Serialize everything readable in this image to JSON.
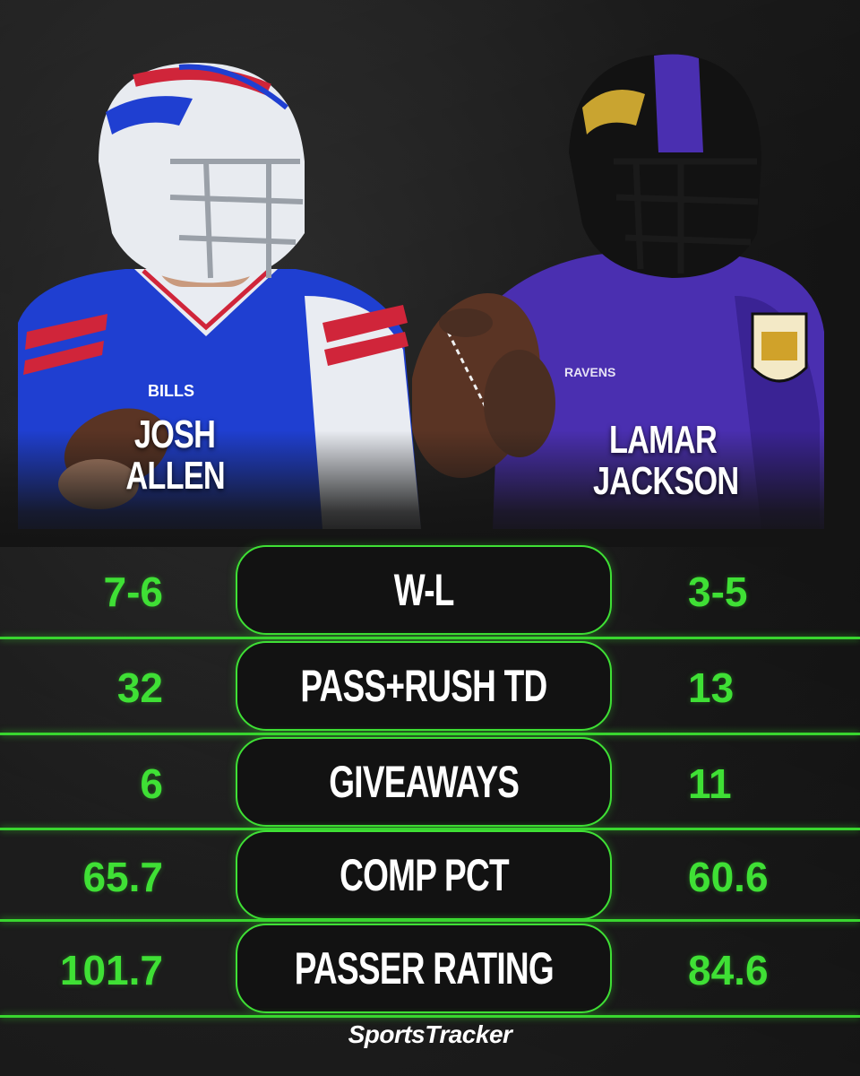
{
  "players": {
    "left": {
      "name_line1": "JOSH",
      "name_line2": "ALLEN",
      "jersey_text": "BILLS"
    },
    "right": {
      "name_line1": "LAMAR",
      "name_line2": "JACKSON",
      "jersey_text": "RAVENS"
    }
  },
  "stats": [
    {
      "label": "W-L",
      "left": "7-6",
      "right": "3-5"
    },
    {
      "label": "PASS+RUSH TD",
      "left": "32",
      "right": "13"
    },
    {
      "label": "GIVEAWAYS",
      "left": "6",
      "right": "11"
    },
    {
      "label": "COMP PCT",
      "left": "65.7",
      "right": "60.6"
    },
    {
      "label": "PASSER RATING",
      "left": "101.7",
      "right": "84.6"
    }
  ],
  "brand": {
    "name": "SportsTracker"
  },
  "colors": {
    "accent": "#3fe035",
    "background": "#141414",
    "bills_blue": "#1f3fd1",
    "ravens_purple": "#4a2fb0"
  }
}
